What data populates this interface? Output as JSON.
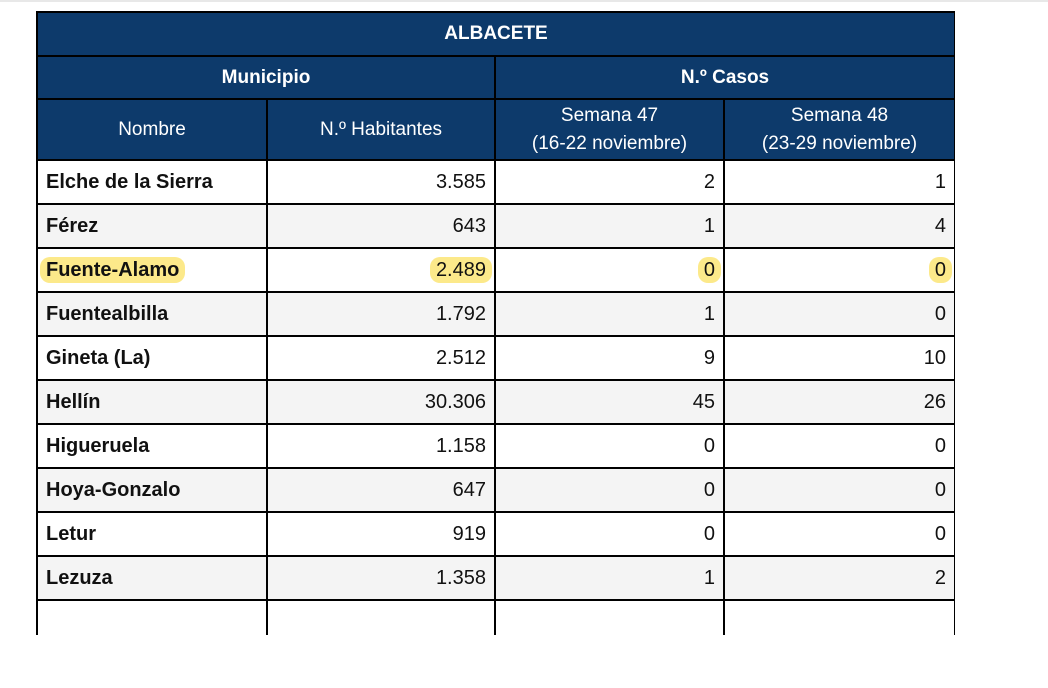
{
  "table": {
    "title": "ALBACETE",
    "group_municipio": "Municipio",
    "group_casos": "N.º Casos",
    "col_nombre": "Nombre",
    "col_habitantes": "N.º Habitantes",
    "col_semana47_line1": "Semana 47",
    "col_semana47_line2": "(16-22 noviembre)",
    "col_semana48_line1": "Semana 48",
    "col_semana48_line2": "(23-29 noviembre)",
    "highlight_color": "#fce98a",
    "header_color": "#0d3a6b",
    "rows": [
      {
        "nombre": "Elche de la Sierra",
        "habitantes": "3.585",
        "s47": "2",
        "s48": "1"
      },
      {
        "nombre": "Férez",
        "habitantes": "643",
        "s47": "1",
        "s48": "4"
      },
      {
        "nombre": "Fuente-Alamo",
        "habitantes": "2.489",
        "s47": "0",
        "s48": "0",
        "highlighted": true
      },
      {
        "nombre": "Fuentealbilla",
        "habitantes": "1.792",
        "s47": "1",
        "s48": "0"
      },
      {
        "nombre": "Gineta (La)",
        "habitantes": "2.512",
        "s47": "9",
        "s48": "10"
      },
      {
        "nombre": "Hellín",
        "habitantes": "30.306",
        "s47": "45",
        "s48": "26"
      },
      {
        "nombre": "Higueruela",
        "habitantes": "1.158",
        "s47": "0",
        "s48": "0"
      },
      {
        "nombre": "Hoya-Gonzalo",
        "habitantes": "647",
        "s47": "0",
        "s48": "0"
      },
      {
        "nombre": "Letur",
        "habitantes": "919",
        "s47": "0",
        "s48": "0"
      },
      {
        "nombre": "Lezuza",
        "habitantes": "1.358",
        "s47": "1",
        "s48": "2"
      },
      {
        "nombre": "",
        "habitantes": "",
        "s47": "",
        "s48": ""
      }
    ]
  }
}
